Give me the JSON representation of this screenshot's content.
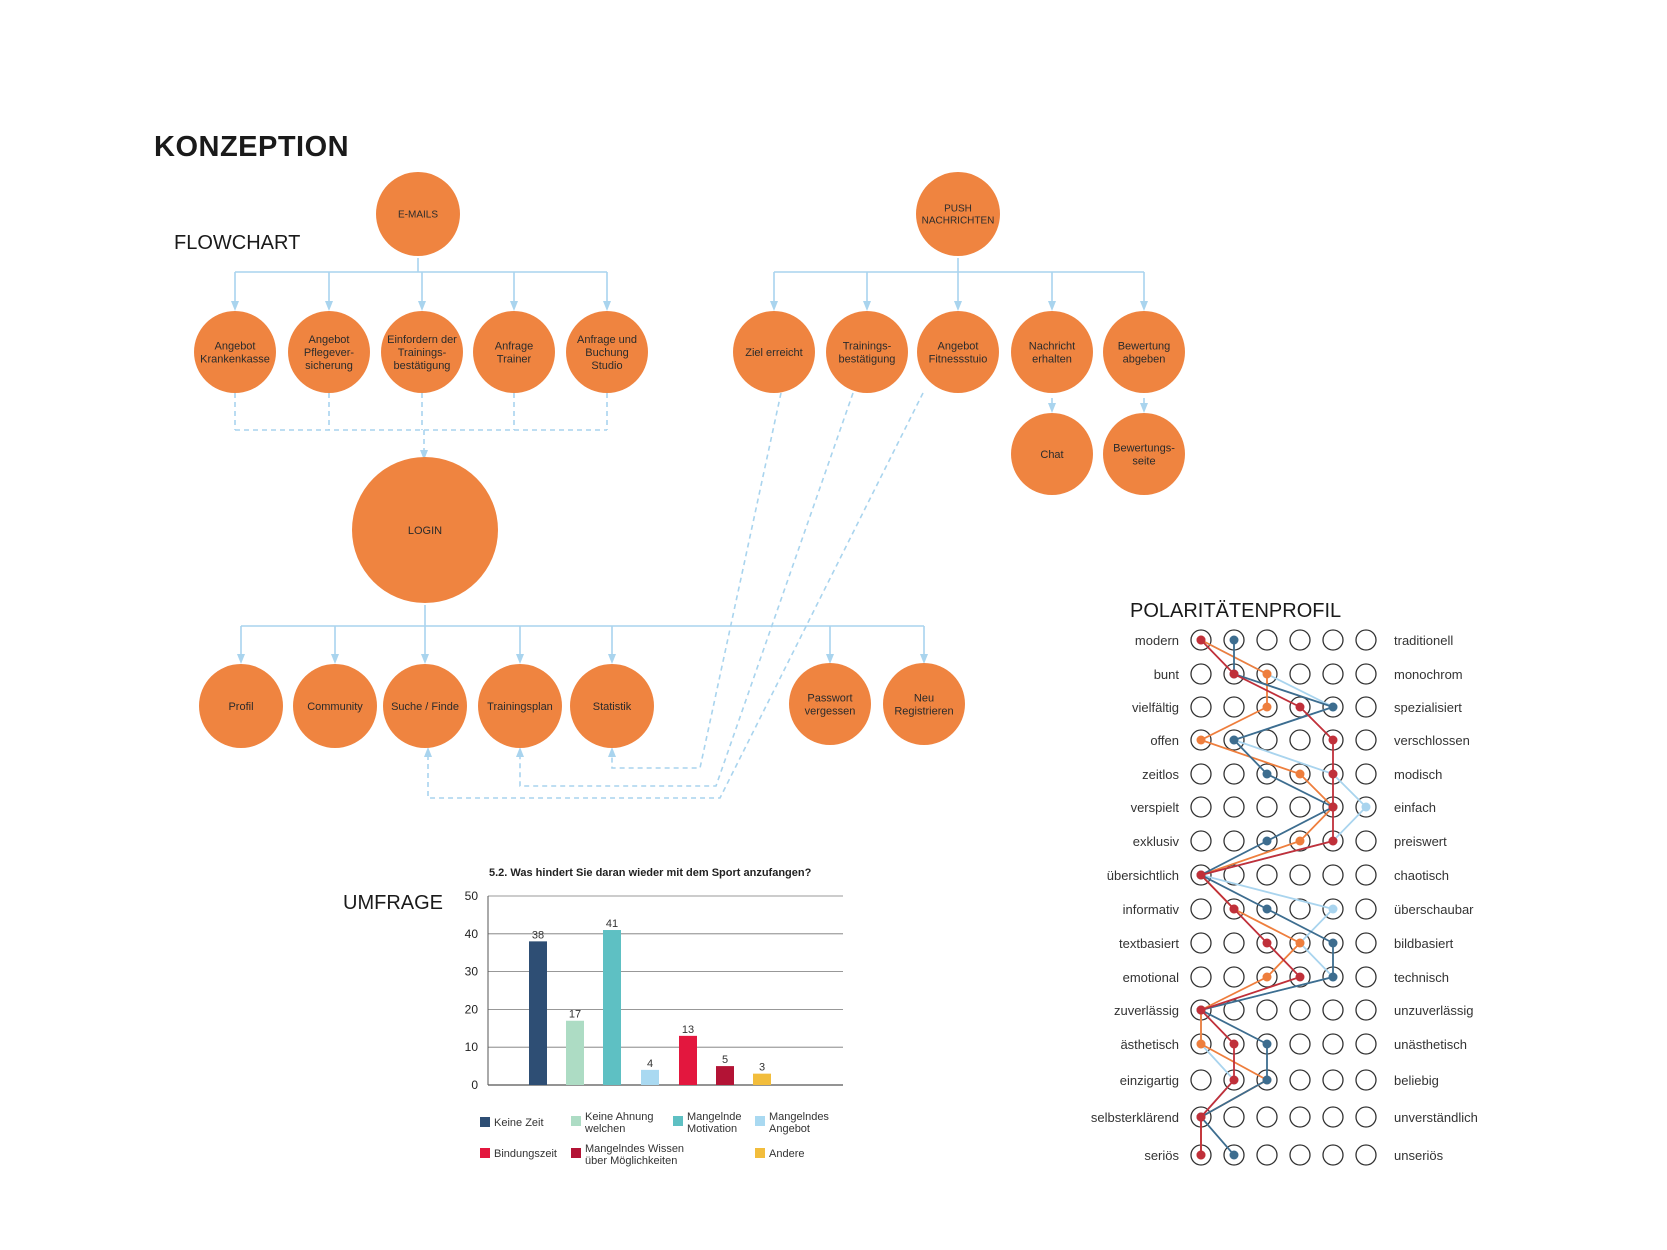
{
  "page": {
    "title": "KONZEPTION"
  },
  "flowchart": {
    "label": "FLOWCHART",
    "email_root": "E-MAILS",
    "email_children": [
      [
        "Angebot",
        "Krankenkasse"
      ],
      [
        "Angebot",
        "Pflegever-",
        "sicherung"
      ],
      [
        "Einfordern der",
        "Trainings-",
        "bestätigung"
      ],
      [
        "Anfrage",
        "Trainer"
      ],
      [
        "Anfrage und",
        "Buchung",
        "Studio"
      ]
    ],
    "push_root": [
      "PUSH",
      "NACHRICHTEN"
    ],
    "push_children": [
      [
        "Ziel erreicht"
      ],
      [
        "Trainings-",
        "bestätigung"
      ],
      [
        "Angebot",
        "Fitnessstuio"
      ],
      [
        "Nachricht",
        "erhalten"
      ],
      [
        "Bewertung",
        "abgeben"
      ]
    ],
    "push_grandchildren": [
      [
        "Chat"
      ],
      [
        "Bewertungs-",
        "seite"
      ]
    ],
    "login": "LOGIN",
    "login_children": [
      [
        "Profil"
      ],
      [
        "Community"
      ],
      [
        "Suche / Finde"
      ],
      [
        "Trainingsplan"
      ],
      [
        "Statistik"
      ],
      [
        "Passwort",
        "vergessen"
      ],
      [
        "Neu",
        "Registrieren"
      ]
    ],
    "colors": {
      "node": "#ef8440",
      "arrow": "#a9d4ee"
    }
  },
  "survey": {
    "label": "UMFRAGE",
    "chart_data": {
      "type": "bar",
      "title": "5.2. Was hindert Sie daran wieder mit dem Sport anzufangen?",
      "categories": [
        "Keine Zeit",
        "Keine Ahnung welchen",
        "Mangelnde Motivation",
        "Mangelndes Angebot",
        "Bindungszeit",
        "Mangelndes Wissen über Möglichkeiten",
        "Andere"
      ],
      "legend_lines": [
        [
          "Keine Zeit"
        ],
        [
          "Keine Ahnung",
          "welchen"
        ],
        [
          "Mangelnde",
          "Motivation"
        ],
        [
          "Mangelndes",
          "Angebot"
        ],
        [
          "Bindungszeit"
        ],
        [
          "Mangelndes Wissen",
          "über Möglichkeiten"
        ],
        [
          "Andere"
        ]
      ],
      "values": [
        38,
        17,
        41,
        4,
        13,
        5,
        3
      ],
      "colors": [
        "#2e4e74",
        "#addcc4",
        "#5ec0c3",
        "#a9d9f1",
        "#e3173e",
        "#b31335",
        "#f2bd3c"
      ],
      "yticks": [
        0,
        10,
        20,
        30,
        40,
        50
      ],
      "ylim": [
        0,
        50
      ],
      "grid": true,
      "legend": "bottom"
    }
  },
  "polarity": {
    "label": "POLARITÄTENPROFIL",
    "left": [
      "modern",
      "bunt",
      "vielfältig",
      "offen",
      "zeitlos",
      "verspielt",
      "exklusiv",
      "übersichtlich",
      "informativ",
      "textbasiert",
      "emotional",
      "zuverlässig",
      "ästhetisch",
      "einzigartig",
      "selbsterklärend",
      "seriös"
    ],
    "right": [
      "traditionell",
      "monochrom",
      "spezialisiert",
      "verschlossen",
      "modisch",
      "einfach",
      "preiswert",
      "chaotisch",
      "überschaubar",
      "bildbasiert",
      "technisch",
      "unzuverlässig",
      "unästhetisch",
      "beliebig",
      "unverständlich",
      "unseriös"
    ],
    "scale_points": 6,
    "profiles": [
      {
        "color": "#c0303a",
        "values": [
          1,
          2,
          4,
          5,
          5,
          5,
          5,
          1,
          2,
          3,
          4,
          1,
          2,
          2,
          1,
          1
        ]
      },
      {
        "color": "#3d6d8f",
        "values": [
          2,
          2,
          5,
          2,
          3,
          5,
          3,
          1,
          3,
          5,
          5,
          1,
          3,
          3,
          1,
          2
        ]
      },
      {
        "color": "#ee7e3d",
        "values": [
          1,
          3,
          3,
          1,
          4,
          5,
          4,
          1,
          2,
          4,
          3,
          1,
          1,
          3,
          1,
          1
        ]
      },
      {
        "color": "#a9d4ee",
        "values": [
          1,
          3,
          5,
          2,
          5,
          6,
          5,
          1,
          5,
          4,
          5,
          1,
          1,
          2,
          1,
          1
        ]
      }
    ]
  }
}
